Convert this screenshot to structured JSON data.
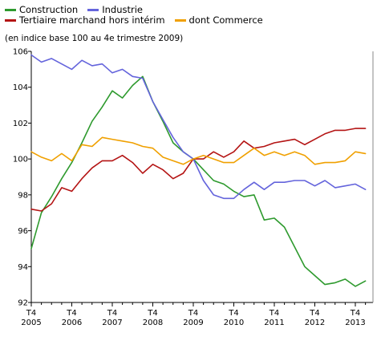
{
  "legend": [
    {
      "label": "Construction",
      "color": "#2e9a2e"
    },
    {
      "label": "Industrie",
      "color": "#6464dc"
    },
    {
      "label": "Tertiaire marchand hors intérim",
      "color": "#b41414"
    },
    {
      "label": "dont Commerce",
      "color": "#f0a000"
    }
  ],
  "subtitle": "(en indice base 100 au 4e trimestre 2009)",
  "chart_data": {
    "type": "line",
    "title": "",
    "subtitle": "(en indice base 100 au 4e trimestre 2009)",
    "xlabel": "",
    "ylabel": "",
    "ylim": [
      92,
      106
    ],
    "yticks": [
      92,
      94,
      96,
      98,
      100,
      102,
      104,
      106
    ],
    "grid": false,
    "legend_position": "top-left",
    "x_tick_labels": [
      {
        "top": "T4",
        "bottom": "2005"
      },
      {
        "top": "T4",
        "bottom": "2006"
      },
      {
        "top": "T4",
        "bottom": "2007"
      },
      {
        "top": "T4",
        "bottom": "2008"
      },
      {
        "top": "T4",
        "bottom": "2009"
      },
      {
        "top": "T4",
        "bottom": "2010"
      },
      {
        "top": "T4",
        "bottom": "2011"
      },
      {
        "top": "T4",
        "bottom": "2012"
      },
      {
        "top": "T4",
        "bottom": "2013"
      }
    ],
    "x": [
      "2005T4",
      "2006T1",
      "2006T2",
      "2006T3",
      "2006T4",
      "2007T1",
      "2007T2",
      "2007T3",
      "2007T4",
      "2008T1",
      "2008T2",
      "2008T3",
      "2008T4",
      "2009T1",
      "2009T2",
      "2009T3",
      "2009T4",
      "2010T1",
      "2010T2",
      "2010T3",
      "2010T4",
      "2011T1",
      "2011T2",
      "2011T3",
      "2011T4",
      "2012T1",
      "2012T2",
      "2012T3",
      "2012T4",
      "2013T1",
      "2013T2",
      "2013T3",
      "2013T4",
      "2014T1"
    ],
    "series": [
      {
        "name": "Construction",
        "color": "#2e9a2e",
        "values": [
          95.0,
          97.0,
          97.9,
          98.9,
          99.8,
          100.9,
          102.1,
          102.9,
          103.8,
          103.4,
          104.1,
          104.6,
          103.2,
          102.1,
          100.9,
          100.4,
          100.0,
          99.4,
          98.8,
          98.6,
          98.2,
          97.9,
          98.0,
          96.6,
          96.7,
          96.2,
          95.1,
          94.0,
          93.5,
          93.0,
          93.1,
          93.3,
          92.9,
          93.2
        ]
      },
      {
        "name": "Industrie",
        "color": "#6464dc",
        "values": [
          105.8,
          105.4,
          105.6,
          105.3,
          105.0,
          105.5,
          105.2,
          105.3,
          104.8,
          105.0,
          104.6,
          104.5,
          103.2,
          102.2,
          101.2,
          100.4,
          100.0,
          98.8,
          98.0,
          97.8,
          97.8,
          98.3,
          98.7,
          98.3,
          98.7,
          98.7,
          98.8,
          98.8,
          98.5,
          98.8,
          98.4,
          98.5,
          98.6,
          98.3
        ]
      },
      {
        "name": "Tertiaire marchand hors intérim",
        "color": "#b41414",
        "values": [
          97.2,
          97.1,
          97.5,
          98.4,
          98.2,
          98.9,
          99.5,
          99.9,
          99.9,
          100.2,
          99.8,
          99.2,
          99.7,
          99.4,
          98.9,
          99.2,
          100.0,
          100.0,
          100.4,
          100.1,
          100.4,
          101.0,
          100.6,
          100.7,
          100.9,
          101.0,
          101.1,
          100.8,
          101.1,
          101.4,
          101.6,
          101.6,
          101.7,
          101.7
        ]
      },
      {
        "name": "dont Commerce",
        "color": "#f0a000",
        "values": [
          100.4,
          100.1,
          99.9,
          100.3,
          99.9,
          100.8,
          100.7,
          101.2,
          101.1,
          101.0,
          100.9,
          100.7,
          100.6,
          100.1,
          99.9,
          99.7,
          100.0,
          100.2,
          100.0,
          99.8,
          99.8,
          100.2,
          100.6,
          100.2,
          100.4,
          100.2,
          100.4,
          100.2,
          99.7,
          99.8,
          99.8,
          99.9,
          100.4,
          100.3
        ]
      }
    ]
  }
}
